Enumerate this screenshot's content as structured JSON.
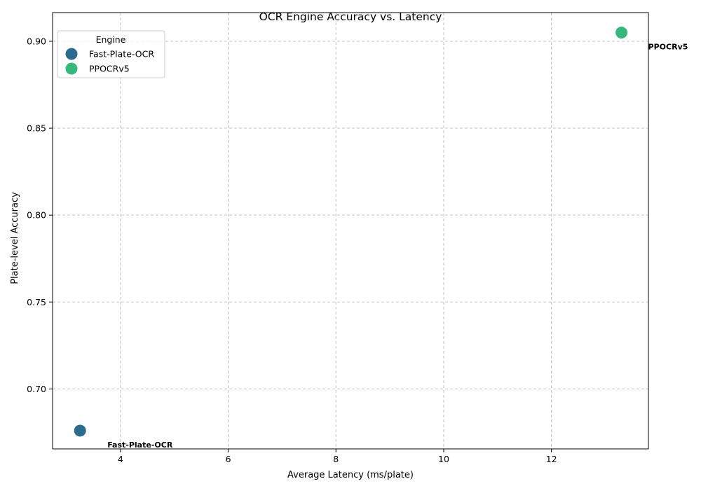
{
  "chart_data": {
    "type": "scatter",
    "title": "OCR Engine Accuracy vs. Latency",
    "xlabel": "Average Latency (ms/plate)",
    "ylabel": "Plate-level Accuracy",
    "xlim": [
      2.74,
      13.8
    ],
    "ylim": [
      0.6655,
      0.9165
    ],
    "x_ticks": [
      4,
      6,
      8,
      10,
      12
    ],
    "y_ticks": [
      0.7,
      0.75,
      0.8,
      0.85,
      0.9
    ],
    "x_tick_labels": [
      "4",
      "6",
      "8",
      "10",
      "12"
    ],
    "y_tick_labels": [
      "0.70",
      "0.75",
      "0.80",
      "0.85",
      "0.90"
    ],
    "grid": true,
    "legend": {
      "title": "Engine",
      "placement": "top-left"
    },
    "series": [
      {
        "name": "Fast-Plate-OCR",
        "x": 3.25,
        "y": 0.676,
        "color": "#2d6b8e",
        "label": "Fast-Plate-OCR"
      },
      {
        "name": "PPOCRv5",
        "x": 13.3,
        "y": 0.905,
        "color": "#36b87a",
        "label": "PPOCRv5"
      }
    ]
  }
}
